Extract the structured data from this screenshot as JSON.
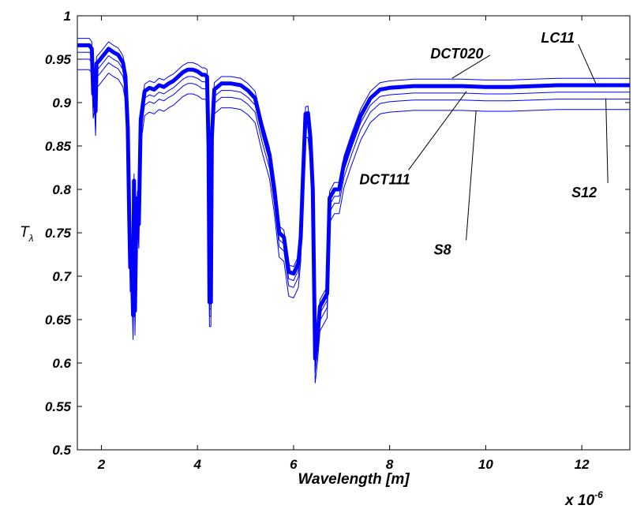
{
  "chart_data": {
    "type": "line",
    "title": "",
    "xlabel": "Wavelength [m]",
    "ylabel_main": "T",
    "ylabel_sub": "λ",
    "x_multiplier_base": "x 10",
    "x_multiplier_exp": "-6",
    "xlim": [
      1.5,
      13.0
    ],
    "ylim": [
      0.5,
      1.0
    ],
    "xticks": [
      2,
      4,
      6,
      8,
      10,
      12
    ],
    "xtick_labels": [
      "2",
      "4",
      "6",
      "8",
      "10",
      "12"
    ],
    "yticks": [
      0.5,
      0.55,
      0.6,
      0.65,
      0.7,
      0.75,
      0.8,
      0.85,
      0.9,
      0.95,
      1.0
    ],
    "ytick_labels": [
      "0.5",
      "0.55",
      "0.6",
      "0.65",
      "0.7",
      "0.75",
      "0.8",
      "0.85",
      "0.9",
      "0.95",
      "1"
    ],
    "grid": false,
    "line_color": "#0000ff",
    "series": [
      {
        "name": "DCT020",
        "offset": 0.008,
        "bold": false
      },
      {
        "name": "LC11",
        "offset": 0.0,
        "bold": true
      },
      {
        "name": "DCT111",
        "offset": -0.008,
        "bold": false
      },
      {
        "name": "S12",
        "offset": -0.016,
        "bold": false
      },
      {
        "name": "S8",
        "offset": -0.028,
        "bold": false
      }
    ],
    "base_profile": [
      [
        1.5,
        0.966
      ],
      [
        1.75,
        0.966
      ],
      [
        1.8,
        0.962
      ],
      [
        1.83,
        0.91
      ],
      [
        1.86,
        0.92
      ],
      [
        1.88,
        0.89
      ],
      [
        1.9,
        0.945
      ],
      [
        1.95,
        0.948
      ],
      [
        2.05,
        0.955
      ],
      [
        2.15,
        0.962
      ],
      [
        2.25,
        0.958
      ],
      [
        2.35,
        0.955
      ],
      [
        2.45,
        0.946
      ],
      [
        2.5,
        0.93
      ],
      [
        2.55,
        0.87
      ],
      [
        2.58,
        0.77
      ],
      [
        2.6,
        0.71
      ],
      [
        2.62,
        0.72
      ],
      [
        2.64,
        0.7
      ],
      [
        2.66,
        0.655
      ],
      [
        2.68,
        0.81
      ],
      [
        2.7,
        0.66
      ],
      [
        2.72,
        0.74
      ],
      [
        2.75,
        0.79
      ],
      [
        2.78,
        0.76
      ],
      [
        2.82,
        0.88
      ],
      [
        2.9,
        0.913
      ],
      [
        3.0,
        0.917
      ],
      [
        3.1,
        0.915
      ],
      [
        3.2,
        0.92
      ],
      [
        3.3,
        0.918
      ],
      [
        3.4,
        0.922
      ],
      [
        3.5,
        0.925
      ],
      [
        3.6,
        0.93
      ],
      [
        3.7,
        0.935
      ],
      [
        3.8,
        0.938
      ],
      [
        3.9,
        0.938
      ],
      [
        4.0,
        0.936
      ],
      [
        4.1,
        0.932
      ],
      [
        4.15,
        0.932
      ],
      [
        4.2,
        0.93
      ],
      [
        4.23,
        0.85
      ],
      [
        4.25,
        0.67
      ],
      [
        4.28,
        0.67
      ],
      [
        4.3,
        0.86
      ],
      [
        4.35,
        0.915
      ],
      [
        4.5,
        0.922
      ],
      [
        4.7,
        0.922
      ],
      [
        4.9,
        0.92
      ],
      [
        5.05,
        0.914
      ],
      [
        5.2,
        0.905
      ],
      [
        5.35,
        0.87
      ],
      [
        5.5,
        0.84
      ],
      [
        5.6,
        0.8
      ],
      [
        5.7,
        0.75
      ],
      [
        5.8,
        0.745
      ],
      [
        5.9,
        0.705
      ],
      [
        6.0,
        0.703
      ],
      [
        6.1,
        0.715
      ],
      [
        6.15,
        0.745
      ],
      [
        6.2,
        0.82
      ],
      [
        6.25,
        0.887
      ],
      [
        6.3,
        0.888
      ],
      [
        6.35,
        0.86
      ],
      [
        6.4,
        0.8
      ],
      [
        6.45,
        0.605
      ],
      [
        6.5,
        0.63
      ],
      [
        6.55,
        0.665
      ],
      [
        6.7,
        0.68
      ],
      [
        6.75,
        0.79
      ],
      [
        6.85,
        0.8
      ],
      [
        6.95,
        0.8
      ],
      [
        7.05,
        0.83
      ],
      [
        7.2,
        0.855
      ],
      [
        7.4,
        0.885
      ],
      [
        7.6,
        0.905
      ],
      [
        7.8,
        0.915
      ],
      [
        8.0,
        0.917
      ],
      [
        8.5,
        0.919
      ],
      [
        9.0,
        0.919
      ],
      [
        9.5,
        0.919
      ],
      [
        10.0,
        0.918
      ],
      [
        10.5,
        0.918
      ],
      [
        11.0,
        0.919
      ],
      [
        11.5,
        0.92
      ],
      [
        12.0,
        0.92
      ],
      [
        12.5,
        0.92
      ],
      [
        13.0,
        0.92
      ]
    ],
    "annotations": [
      {
        "text": "DCT020",
        "x": 9.4,
        "y": 0.951,
        "target_x": 9.3,
        "target_y": 0.928
      },
      {
        "text": "LC11",
        "x": 11.5,
        "y": 0.969,
        "target_x": 12.3,
        "target_y": 0.921
      },
      {
        "text": "DCT111",
        "x": 7.9,
        "y": 0.806,
        "target_x": 9.6,
        "target_y": 0.913
      },
      {
        "text": "S12",
        "x": 12.05,
        "y": 0.791,
        "target_x": 12.5,
        "target_y": 0.905
      },
      {
        "text": "S8",
        "x": 9.1,
        "y": 0.725,
        "target_x": 9.8,
        "target_y": 0.891
      }
    ]
  }
}
